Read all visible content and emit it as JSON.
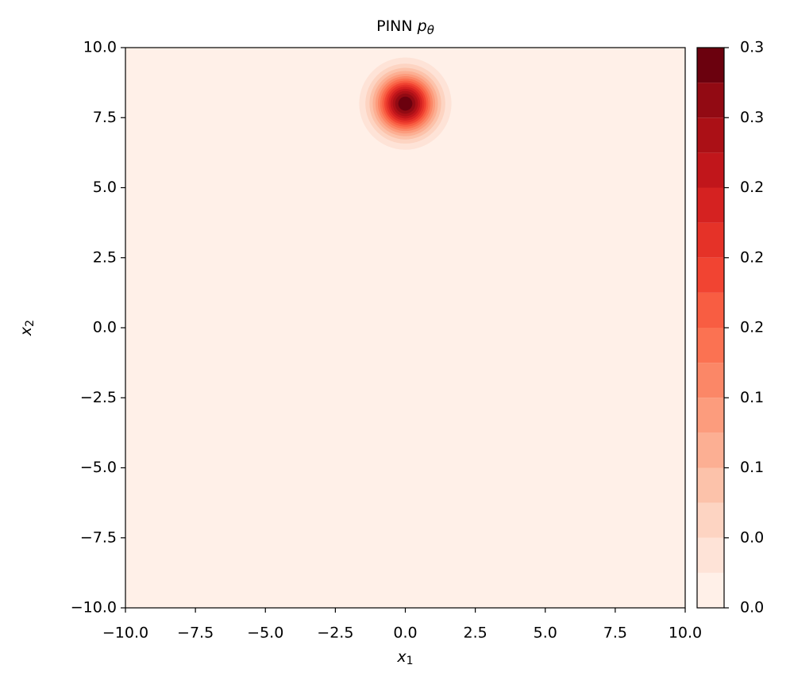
{
  "chart_data": {
    "type": "contourf",
    "title": "PINN pθ",
    "x_label": "x1",
    "y_label": "x2",
    "xlim": [
      -10,
      10
    ],
    "ylim": [
      -10,
      10
    ],
    "xticks": [
      {
        "value": -10,
        "label": "−10.0"
      },
      {
        "value": -7.5,
        "label": "−7.5"
      },
      {
        "value": -5,
        "label": "−5.0"
      },
      {
        "value": -2.5,
        "label": "−2.5"
      },
      {
        "value": 0,
        "label": "0.0"
      },
      {
        "value": 2.5,
        "label": "2.5"
      },
      {
        "value": 5,
        "label": "5.0"
      },
      {
        "value": 7.5,
        "label": "7.5"
      },
      {
        "value": 10,
        "label": "10.0"
      }
    ],
    "yticks": [
      {
        "value": -10,
        "label": "−10.0"
      },
      {
        "value": -7.5,
        "label": "−7.5"
      },
      {
        "value": -5,
        "label": "−5.0"
      },
      {
        "value": -2.5,
        "label": "−2.5"
      },
      {
        "value": 0,
        "label": "0.0"
      },
      {
        "value": 2.5,
        "label": "2.5"
      },
      {
        "value": 5,
        "label": "5.0"
      },
      {
        "value": 7.5,
        "label": "7.5"
      },
      {
        "value": 10,
        "label": "10.0"
      }
    ],
    "center": [
      0,
      8
    ],
    "sigma": 0.7,
    "peak": 0.32,
    "levels": [
      0,
      0.02,
      0.04,
      0.06,
      0.08,
      0.1,
      0.12,
      0.14,
      0.16,
      0.18,
      0.2,
      0.22,
      0.24,
      0.26,
      0.28,
      0.3,
      0.32
    ],
    "colors": [
      "#fff0e8",
      "#fee3d7",
      "#fdd4c2",
      "#fcc2aa",
      "#fcaf93",
      "#fc9c7d",
      "#fb8767",
      "#fb7252",
      "#f85d42",
      "#f14432",
      "#e53228",
      "#d52221",
      "#c1161b",
      "#ab1016",
      "#920a13",
      "#6b010e"
    ],
    "cbar_lim": [
      0,
      0.32
    ],
    "cbar_ticks": [
      {
        "value": 0,
        "label": "0.0"
      },
      {
        "value": 0.04,
        "label": "0.0"
      },
      {
        "value": 0.08,
        "label": "0.1"
      },
      {
        "value": 0.12,
        "label": "0.1"
      },
      {
        "value": 0.16,
        "label": "0.2"
      },
      {
        "value": 0.2,
        "label": "0.2"
      },
      {
        "value": 0.24,
        "label": "0.2"
      },
      {
        "value": 0.28,
        "label": "0.3"
      },
      {
        "value": 0.32,
        "label": "0.3"
      }
    ]
  }
}
